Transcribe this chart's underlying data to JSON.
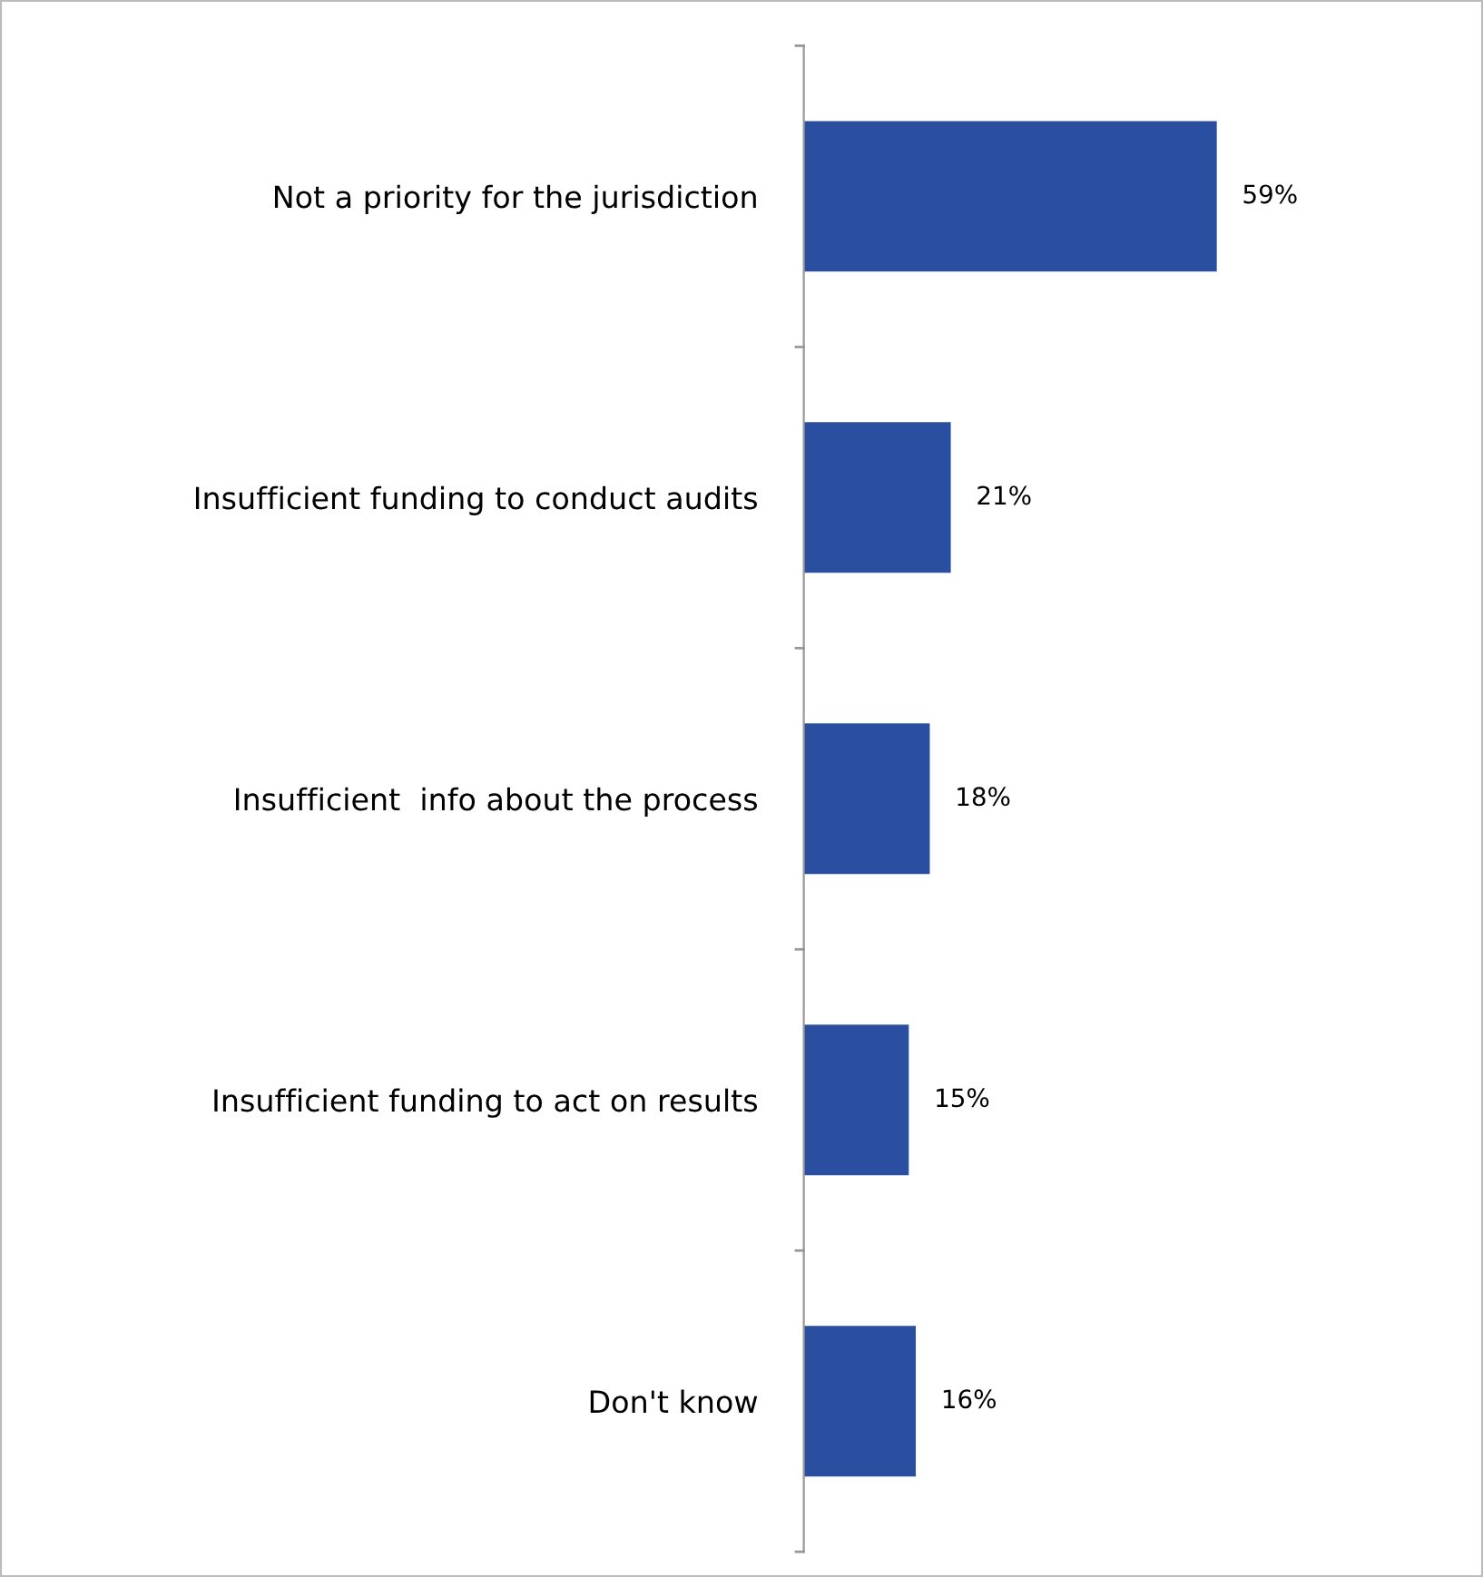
{
  "chart_data": {
    "type": "bar",
    "orientation": "horizontal",
    "categories": [
      "Not a priority for the jurisdiction",
      "Insufficient funding to conduct audits",
      "Insufficient  info about the process",
      "Insufficient funding to act on results",
      "Don't know"
    ],
    "values": [
      59,
      21,
      18,
      15,
      16
    ],
    "color": "#2a4ea0",
    "value_labels": [
      "59%",
      "21%",
      "18%",
      "15%",
      "16%"
    ],
    "tick_labels": "y",
    "grid": false,
    "legend": false
  }
}
